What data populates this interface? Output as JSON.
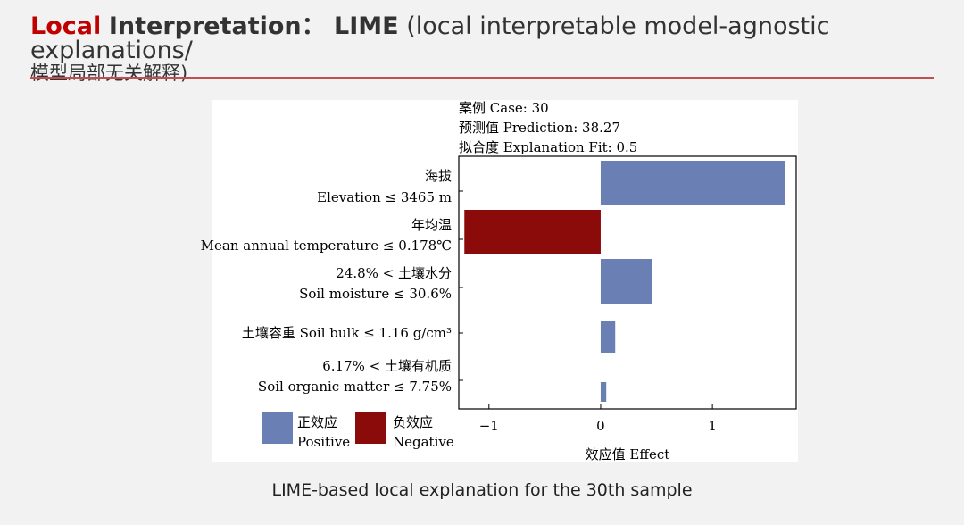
{
  "slide": {
    "title_red": "Local",
    "title_bold": "Interpretation：  LIME",
    "title_rest": " (local interpretable model-agnostic explanations/",
    "title_line2": "模型局部无关解释)",
    "caption": "LIME-based local explanation for the 30th sample"
  },
  "chart_data": {
    "type": "bar",
    "orientation": "horizontal",
    "header_lines": [
      "案例 Case: 30",
      "预测值 Prediction: 38.27",
      "拟合度 Explanation Fit: 0.5"
    ],
    "categories": [
      [
        "海拔",
        "Elevation ≤ 3465 m"
      ],
      [
        "年均温",
        "Mean annual temperature ≤ 0.178℃"
      ],
      [
        "24.8% < 土壤水分",
        "Soil moisture ≤ 30.6%"
      ],
      [
        "土壤容重 Soil bulk ≤ 1.16 g/cm³"
      ],
      [
        "6.17% < 土壤有机质",
        "Soil organic matter ≤ 7.75%"
      ]
    ],
    "values": [
      1.65,
      -1.22,
      0.46,
      0.13,
      0.05
    ],
    "xlabel": "效应值 Effect",
    "xlim": [
      -1.27,
      1.75
    ],
    "xticks": [
      -1,
      0,
      1
    ],
    "xtick_labels": [
      "−1",
      "0",
      "1"
    ],
    "grid": false,
    "legend": {
      "placement": "bottom-left",
      "entries": [
        {
          "label": [
            "正效应",
            "Positive"
          ],
          "color": "#6a80b5"
        },
        {
          "label": [
            "负效应",
            "Negative"
          ],
          "color": "#8b0a0a"
        }
      ]
    }
  }
}
